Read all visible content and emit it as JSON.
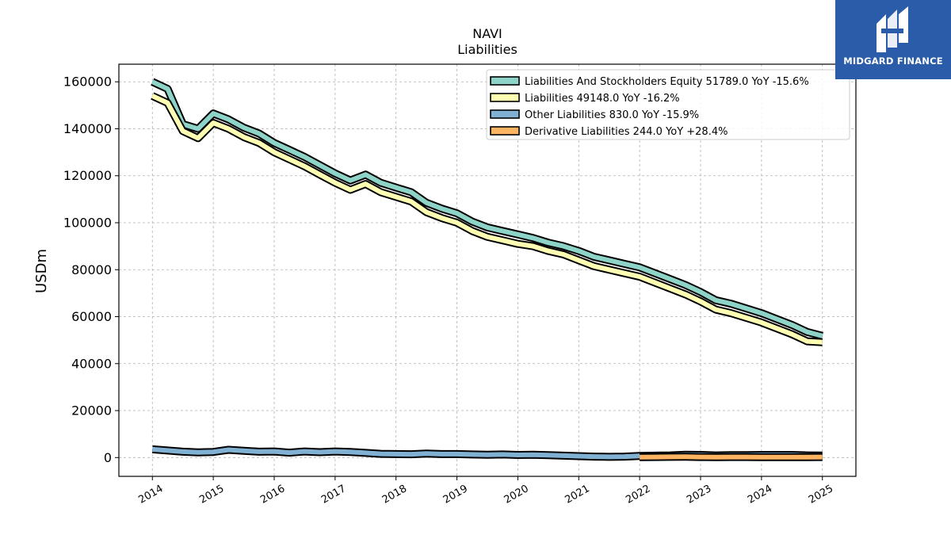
{
  "chart_data": {
    "type": "line",
    "title": "NAVI",
    "subtitle": "Liabilities",
    "xlabel": "",
    "ylabel": "USDm",
    "xlim": [
      2013.45,
      2025.55
    ],
    "ylim": [
      -8000,
      167500
    ],
    "yticks": [
      0,
      20000,
      40000,
      60000,
      80000,
      100000,
      120000,
      140000,
      160000
    ],
    "xticks": [
      2014,
      2015,
      2016,
      2017,
      2018,
      2019,
      2020,
      2021,
      2022,
      2023,
      2024,
      2025
    ],
    "xtick_labels": [
      "2014",
      "2015",
      "2016",
      "2017",
      "2018",
      "2019",
      "2020",
      "2021",
      "2022",
      "2023",
      "2024",
      "2025"
    ],
    "ytick_labels": [
      "0",
      "20000",
      "40000",
      "60000",
      "80000",
      "100000",
      "120000",
      "140000",
      "160000"
    ],
    "grid": true,
    "legend_position": "top-right",
    "series": [
      {
        "name": "Liabilities And Stockholders Equity",
        "legend": "Liabilities And Stockholders Equity  51789.0 YoY -15.6%",
        "color": "#8dd3c7",
        "x": [
          2014.0,
          2014.25,
          2014.5,
          2014.75,
          2015.0,
          2015.25,
          2015.5,
          2015.75,
          2016.0,
          2016.25,
          2016.5,
          2016.75,
          2017.0,
          2017.25,
          2017.5,
          2017.75,
          2018.0,
          2018.25,
          2018.5,
          2018.75,
          2019.0,
          2019.25,
          2019.5,
          2019.75,
          2020.0,
          2020.25,
          2020.5,
          2020.75,
          2021.0,
          2021.25,
          2021.5,
          2021.75,
          2022.0,
          2022.25,
          2022.5,
          2022.75,
          2023.0,
          2023.25,
          2023.5,
          2023.75,
          2024.0,
          2024.25,
          2024.5,
          2024.75,
          2025.0
        ],
        "y": [
          160000,
          157000,
          142000,
          140000,
          146500,
          144000,
          140500,
          138000,
          134000,
          131000,
          128000,
          124500,
          121000,
          118000,
          120500,
          117000,
          115000,
          113000,
          108500,
          106000,
          104000,
          100500,
          98000,
          96500,
          95000,
          93500,
          91500,
          90000,
          88000,
          85500,
          84000,
          82500,
          81000,
          78500,
          76000,
          73500,
          70500,
          67000,
          65500,
          63500,
          61500,
          59000,
          56500,
          53500,
          51789
        ]
      },
      {
        "name": "Liabilities",
        "legend": "Liabilities  49148.0 YoY -16.2%",
        "color": "#ffffb3",
        "x": [
          2014.0,
          2014.25,
          2014.5,
          2014.75,
          2015.0,
          2015.25,
          2015.5,
          2015.75,
          2016.0,
          2016.25,
          2016.5,
          2016.75,
          2017.0,
          2017.25,
          2017.5,
          2017.75,
          2018.0,
          2018.25,
          2018.5,
          2018.75,
          2019.0,
          2019.25,
          2019.5,
          2019.75,
          2020.0,
          2020.25,
          2020.5,
          2020.75,
          2021.0,
          2021.25,
          2021.5,
          2021.75,
          2022.0,
          2022.25,
          2022.5,
          2022.75,
          2023.0,
          2023.25,
          2023.5,
          2023.75,
          2024.0,
          2024.25,
          2024.5,
          2024.75,
          2025.0
        ],
        "y": [
          154000,
          151000,
          139000,
          136000,
          142500,
          140000,
          136500,
          134000,
          130000,
          127000,
          124000,
          120500,
          117000,
          114000,
          116500,
          113000,
          111000,
          109000,
          104500,
          102000,
          100000,
          96500,
          94000,
          92500,
          91000,
          90000,
          88000,
          86500,
          84000,
          81500,
          80000,
          78500,
          77000,
          74500,
          72000,
          69500,
          66500,
          63000,
          61500,
          59500,
          57500,
          55000,
          52500,
          49500,
          49148
        ]
      },
      {
        "name": "Other Liabilities",
        "legend": "Other Liabilities  830.0 YoY -15.9%",
        "color": "#80b1d3",
        "x": [
          2014.0,
          2014.25,
          2014.5,
          2014.75,
          2015.0,
          2015.25,
          2015.5,
          2015.75,
          2016.0,
          2016.25,
          2016.5,
          2016.75,
          2017.0,
          2017.25,
          2017.5,
          2017.75,
          2018.0,
          2018.25,
          2018.5,
          2018.75,
          2019.0,
          2019.25,
          2019.5,
          2019.75,
          2020.0,
          2020.25,
          2020.5,
          2020.75,
          2021.0,
          2021.25,
          2021.5,
          2021.75,
          2022.0,
          2022.25,
          2022.5,
          2022.75,
          2023.0,
          2023.25,
          2023.5,
          2023.75,
          2024.0,
          2024.25,
          2024.5,
          2024.75,
          2025.0
        ],
        "y": [
          3500,
          3000,
          2500,
          2200,
          2400,
          3300,
          2900,
          2500,
          2600,
          2100,
          2600,
          2300,
          2600,
          2400,
          2000,
          1600,
          1500,
          1400,
          1700,
          1500,
          1500,
          1300,
          1200,
          1300,
          1100,
          1200,
          1000,
          800,
          600,
          400,
          300,
          400,
          700,
          800,
          900,
          1200,
          1100,
          900,
          1000,
          1000,
          1100,
          1100,
          1100,
          900,
          830
        ]
      },
      {
        "name": "Derivative Liabilities",
        "legend": "Derivative Liabilities  244.0 YoY +28.4%",
        "color": "#fdb462",
        "x": [
          2022.0,
          2022.25,
          2022.5,
          2022.75,
          2023.0,
          2023.25,
          2023.5,
          2023.75,
          2024.0,
          2024.25,
          2024.5,
          2024.75,
          2025.0
        ],
        "y": [
          200,
          250,
          300,
          350,
          250,
          200,
          250,
          250,
          200,
          200,
          200,
          190,
          244
        ]
      }
    ]
  },
  "logo": {
    "text": "MIDGARD FINANCE"
  }
}
